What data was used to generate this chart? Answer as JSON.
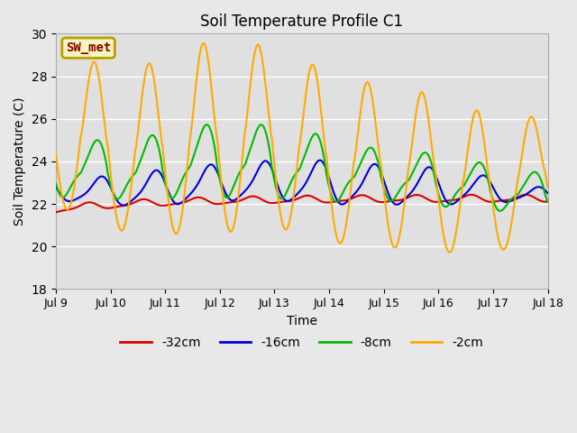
{
  "title": "Soil Temperature Profile C1",
  "xlabel": "Time",
  "ylabel": "Soil Temperature (C)",
  "ylim": [
    18,
    30
  ],
  "yticks": [
    18,
    20,
    22,
    24,
    26,
    28,
    30
  ],
  "fig_bg_color": "#e8e8e8",
  "plot_bg_color": "#e0e0e0",
  "annotation_label": "SW_met",
  "annotation_color": "#8B0000",
  "annotation_bg": "#f5f5c0",
  "annotation_border": "#b8a000",
  "series": {
    "-32cm": {
      "color": "#dd0000",
      "linewidth": 1.5
    },
    "-16cm": {
      "color": "#0000dd",
      "linewidth": 1.5
    },
    "-8cm": {
      "color": "#00bb00",
      "linewidth": 1.5
    },
    "-2cm": {
      "color": "#ffaa00",
      "linewidth": 1.5
    }
  },
  "n_days": 9,
  "x_tick_labels": [
    "Jul 9",
    "Jul 10",
    "Jul 11",
    "Jul 12",
    "Jul 13",
    "Jul 14",
    "Jul 15",
    "Jul 16",
    "Jul 17",
    "Jul 18"
  ]
}
